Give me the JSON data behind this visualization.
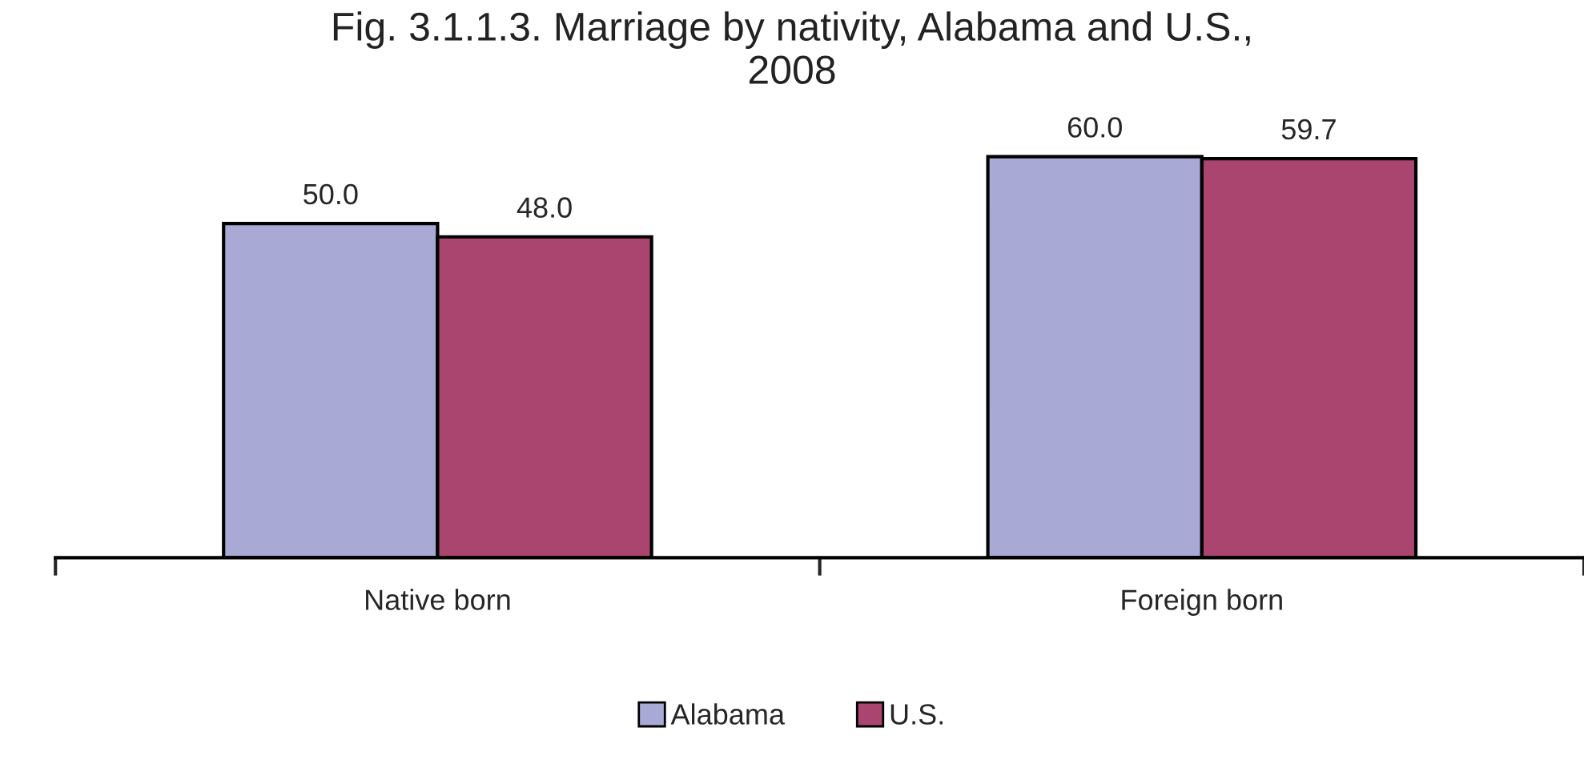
{
  "chart_data": {
    "type": "bar",
    "title": "Fig. 3.1.1.3. Marriage by nativity, Alabama and U.S.,\n2008",
    "categories": [
      "Native born",
      "Foreign born"
    ],
    "series": [
      {
        "name": "Alabama",
        "color": "#a9a9d6",
        "values": [
          50.0,
          60.0
        ],
        "value_labels": [
          "50.0",
          "60.0"
        ]
      },
      {
        "name": "U.S.",
        "color": "#a9456f",
        "values": [
          48.0,
          59.7
        ],
        "value_labels": [
          "48.0",
          "59.7"
        ]
      }
    ],
    "legend": "bottom",
    "grid": false
  }
}
